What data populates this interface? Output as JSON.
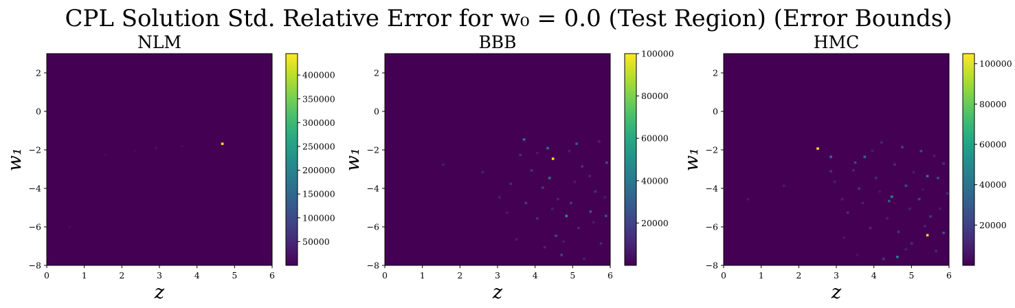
{
  "figure": {
    "title": "CPL Solution Std. Relative Error for w₀ = 0.0 (Test Region) (Error Bounds)"
  },
  "chart_data": [
    {
      "type": "heatmap",
      "title": "NLM",
      "xlabel": "z",
      "ylabel": "w₁",
      "xlim": [
        0,
        6
      ],
      "ylim": [
        -8,
        3
      ],
      "xticks": [
        "0",
        "1",
        "2",
        "3",
        "4",
        "5",
        "6"
      ],
      "yticks": [
        "−8",
        "−6",
        "−4",
        "−2",
        "0",
        "2"
      ],
      "colormap": "viridis",
      "background_value": 0,
      "color_range": [
        0,
        445000
      ],
      "colorbar_ticks": [
        "50000",
        "100000",
        "150000",
        "200000",
        "250000",
        "300000",
        "350000",
        "400000"
      ],
      "colorbar_tick_values": [
        50000,
        100000,
        150000,
        200000,
        250000,
        300000,
        350000,
        400000
      ],
      "cells": [
        {
          "x": 4.67,
          "y": -1.67,
          "value": 445000
        },
        {
          "x": 2.9,
          "y": -1.9,
          "value": 20000
        },
        {
          "x": 3.6,
          "y": -1.8,
          "value": 15000
        },
        {
          "x": 2.35,
          "y": -2.05,
          "value": 12000
        },
        {
          "x": 0.6,
          "y": -6.0,
          "value": 15000
        },
        {
          "x": 1.55,
          "y": -2.25,
          "value": 10000
        }
      ]
    },
    {
      "type": "heatmap",
      "title": "BBB",
      "xlabel": "z",
      "ylabel": "w₁",
      "xlim": [
        0,
        6
      ],
      "ylim": [
        -8,
        3
      ],
      "xticks": [
        "0",
        "1",
        "2",
        "3",
        "4",
        "5",
        "6"
      ],
      "yticks": [
        "−8",
        "−6",
        "−4",
        "−2",
        "0",
        "2"
      ],
      "colormap": "viridis",
      "background_value": 0,
      "color_range": [
        0,
        100000
      ],
      "colorbar_ticks": [
        "20000",
        "40000",
        "60000",
        "80000",
        "100000"
      ],
      "colorbar_tick_values": [
        20000,
        40000,
        60000,
        80000,
        100000
      ],
      "cells": [
        {
          "x": 4.47,
          "y": -2.45,
          "value": 100000
        },
        {
          "x": 4.83,
          "y": -5.42,
          "value": 50000
        },
        {
          "x": 3.7,
          "y": -1.45,
          "value": 40000
        },
        {
          "x": 4.38,
          "y": -3.45,
          "value": 38000
        },
        {
          "x": 4.33,
          "y": -1.9,
          "value": 36000
        },
        {
          "x": 5.1,
          "y": -1.67,
          "value": 30000
        },
        {
          "x": 5.47,
          "y": -5.2,
          "value": 28000
        },
        {
          "x": 5.88,
          "y": -5.42,
          "value": 26000
        },
        {
          "x": 5.9,
          "y": -2.65,
          "value": 24000
        },
        {
          "x": 4.55,
          "y": -6.45,
          "value": 22000
        },
        {
          "x": 4.7,
          "y": -7.45,
          "value": 20000
        },
        {
          "x": 3.75,
          "y": -4.75,
          "value": 18000
        },
        {
          "x": 4.95,
          "y": -4.75,
          "value": 17000
        },
        {
          "x": 4.2,
          "y": -3.95,
          "value": 16000
        },
        {
          "x": 3.9,
          "y": -3.05,
          "value": 15000
        },
        {
          "x": 5.25,
          "y": -2.85,
          "value": 15000
        },
        {
          "x": 5.6,
          "y": -4.15,
          "value": 14000
        },
        {
          "x": 3.35,
          "y": -3.75,
          "value": 13000
        },
        {
          "x": 4.05,
          "y": -5.55,
          "value": 13000
        },
        {
          "x": 5.15,
          "y": -6.05,
          "value": 12000
        },
        {
          "x": 5.75,
          "y": -6.85,
          "value": 12000
        },
        {
          "x": 4.25,
          "y": -7.05,
          "value": 11000
        },
        {
          "x": 3.6,
          "y": -2.25,
          "value": 11000
        },
        {
          "x": 5.45,
          "y": -3.35,
          "value": 10000
        },
        {
          "x": 4.6,
          "y": -4.55,
          "value": 10000
        },
        {
          "x": 2.6,
          "y": -3.15,
          "value": 10000
        },
        {
          "x": 3.05,
          "y": -4.45,
          "value": 9000
        },
        {
          "x": 5.7,
          "y": -1.55,
          "value": 9000
        },
        {
          "x": 4.9,
          "y": -2.05,
          "value": 9000
        },
        {
          "x": 5.3,
          "y": -7.65,
          "value": 9000
        },
        {
          "x": 3.5,
          "y": -6.65,
          "value": 8000
        },
        {
          "x": 4.45,
          "y": -5.05,
          "value": 8000
        },
        {
          "x": 1.55,
          "y": -2.75,
          "value": 8000
        },
        {
          "x": 5.05,
          "y": -3.65,
          "value": 8000
        },
        {
          "x": 5.85,
          "y": -4.45,
          "value": 7000
        },
        {
          "x": 4.05,
          "y": -2.15,
          "value": 7000
        },
        {
          "x": 3.25,
          "y": -5.25,
          "value": 7000
        },
        {
          "x": 5.55,
          "y": -5.75,
          "value": 7000
        },
        {
          "x": 4.75,
          "y": -6.75,
          "value": 7000
        }
      ]
    },
    {
      "type": "heatmap",
      "title": "HMC",
      "xlabel": "z",
      "ylabel": "w₁",
      "xlim": [
        0,
        6
      ],
      "ylim": [
        -8,
        3
      ],
      "xticks": [
        "0",
        "1",
        "2",
        "3",
        "4",
        "5",
        "6"
      ],
      "yticks": [
        "−8",
        "−6",
        "−4",
        "−2",
        "0",
        "2"
      ],
      "colormap": "viridis",
      "background_value": 0,
      "color_range": [
        0,
        105000
      ],
      "colorbar_ticks": [
        "20000",
        "40000",
        "60000",
        "80000",
        "100000"
      ],
      "colorbar_tick_values": [
        20000,
        40000,
        60000,
        80000,
        100000
      ],
      "cells": [
        {
          "x": 2.5,
          "y": -1.92,
          "value": 105000
        },
        {
          "x": 5.42,
          "y": -6.42,
          "value": 103000
        },
        {
          "x": 4.47,
          "y": -4.42,
          "value": 50000
        },
        {
          "x": 4.62,
          "y": -7.55,
          "value": 45000
        },
        {
          "x": 5.42,
          "y": -3.35,
          "value": 42000
        },
        {
          "x": 2.85,
          "y": -2.35,
          "value": 38000
        },
        {
          "x": 3.75,
          "y": -2.35,
          "value": 36000
        },
        {
          "x": 4.4,
          "y": -4.65,
          "value": 30000
        },
        {
          "x": 5.85,
          "y": -6.3,
          "value": 28000
        },
        {
          "x": 5.7,
          "y": -3.45,
          "value": 26000
        },
        {
          "x": 4.85,
          "y": -3.85,
          "value": 24000
        },
        {
          "x": 3.5,
          "y": -2.65,
          "value": 22000
        },
        {
          "x": 5.25,
          "y": -2.05,
          "value": 22000
        },
        {
          "x": 4.75,
          "y": -1.85,
          "value": 20000
        },
        {
          "x": 5.2,
          "y": -4.55,
          "value": 20000
        },
        {
          "x": 4.25,
          "y": -7.65,
          "value": 18000
        },
        {
          "x": 5.5,
          "y": -5.45,
          "value": 18000
        },
        {
          "x": 4.65,
          "y": -6.25,
          "value": 16000
        },
        {
          "x": 3.6,
          "y": -4.0,
          "value": 16000
        },
        {
          "x": 5.85,
          "y": -2.7,
          "value": 15000
        },
        {
          "x": 2.85,
          "y": -3.1,
          "value": 15000
        },
        {
          "x": 4.05,
          "y": -3.45,
          "value": 14000
        },
        {
          "x": 5.0,
          "y": -6.85,
          "value": 14000
        },
        {
          "x": 3.3,
          "y": -5.25,
          "value": 13000
        },
        {
          "x": 4.55,
          "y": -2.75,
          "value": 13000
        },
        {
          "x": 5.95,
          "y": -4.25,
          "value": 12000
        },
        {
          "x": 3.9,
          "y": -6.05,
          "value": 12000
        },
        {
          "x": 4.2,
          "y": -1.6,
          "value": 11000
        },
        {
          "x": 3.45,
          "y": -3.05,
          "value": 11000
        },
        {
          "x": 5.65,
          "y": -7.25,
          "value": 11000
        },
        {
          "x": 4.95,
          "y": -5.05,
          "value": 10000
        },
        {
          "x": 3.15,
          "y": -4.55,
          "value": 10000
        },
        {
          "x": 5.35,
          "y": -5.95,
          "value": 10000
        },
        {
          "x": 4.35,
          "y": -5.55,
          "value": 9000
        },
        {
          "x": 3.7,
          "y": -4.75,
          "value": 9000
        },
        {
          "x": 2.95,
          "y": -3.65,
          "value": 9000
        },
        {
          "x": 5.6,
          "y": -2.3,
          "value": 9000
        },
        {
          "x": 4.85,
          "y": -7.15,
          "value": 8000
        },
        {
          "x": 3.95,
          "y": -2.05,
          "value": 8000
        },
        {
          "x": 5.05,
          "y": -3.15,
          "value": 8000
        },
        {
          "x": 1.6,
          "y": -3.85,
          "value": 8000
        },
        {
          "x": 3.2,
          "y": -6.55,
          "value": 7000
        },
        {
          "x": 5.75,
          "y": -5.05,
          "value": 7000
        },
        {
          "x": 4.15,
          "y": -4.15,
          "value": 7000
        },
        {
          "x": 0.65,
          "y": -4.55,
          "value": 7000
        },
        {
          "x": 3.55,
          "y": -7.45,
          "value": 6000
        },
        {
          "x": 5.3,
          "y": -4.05,
          "value": 6000
        }
      ]
    }
  ]
}
